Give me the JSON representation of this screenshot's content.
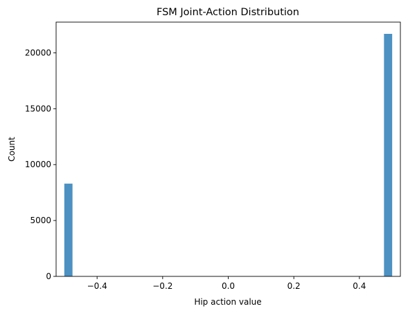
{
  "chart_data": {
    "type": "bar",
    "title": "FSM Joint-Action Distribution",
    "xlabel": "Hip action value",
    "ylabel": "Count",
    "xlim": [
      -0.525,
      0.525
    ],
    "ylim": [
      0,
      22750
    ],
    "xticks": [
      -0.4,
      -0.2,
      0.0,
      0.2,
      0.4
    ],
    "xtick_labels": [
      "−0.4",
      "−0.2",
      "0.0",
      "0.2",
      "0.4"
    ],
    "yticks": [
      0,
      5000,
      10000,
      15000,
      20000
    ],
    "ytick_labels": [
      "0",
      "5000",
      "10000",
      "15000",
      "20000"
    ],
    "bars": [
      {
        "x0": -0.5,
        "x1": -0.475,
        "count": 8300
      },
      {
        "x0": 0.475,
        "x1": 0.5,
        "count": 21700
      }
    ],
    "bar_color": "#4c91c2",
    "grid": false,
    "legend": "none"
  }
}
